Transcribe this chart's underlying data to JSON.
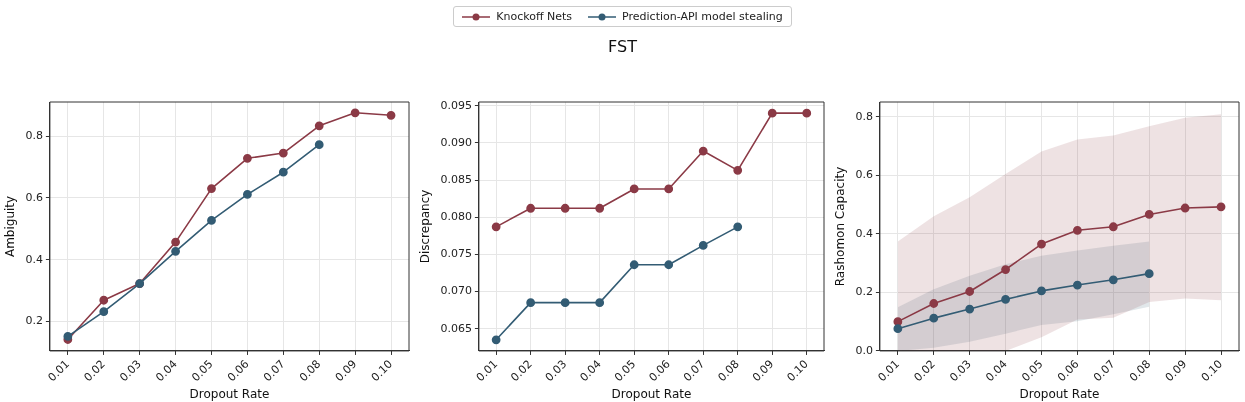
{
  "chart_data": [
    {
      "type": "line",
      "xlabel": "Dropout Rate",
      "ylabel": "Ambiguity",
      "grid": true,
      "marker": "circle",
      "line_style": "solid",
      "categories": [
        "0.01",
        "0.02",
        "0.03",
        "0.04",
        "0.05",
        "0.06",
        "0.07",
        "0.08",
        "0.09",
        "0.10"
      ],
      "ylim": [
        0.105,
        0.91
      ],
      "yticks": [
        0.2,
        0.4,
        0.6,
        0.8
      ],
      "series": [
        {
          "color": "#8b3a46",
          "values": [
            0.142,
            0.269,
            0.323,
            0.457,
            0.63,
            0.728,
            0.745,
            0.833,
            0.875,
            0.867
          ]
        },
        {
          "color": "#335c74",
          "values": [
            0.152,
            0.232,
            0.323,
            0.427,
            0.527,
            0.611,
            0.683,
            0.772,
            null,
            null
          ]
        }
      ]
    },
    {
      "type": "line",
      "title": "FST",
      "xlabel": "Dropout Rate",
      "ylabel": "Discrepancy",
      "legend": "top",
      "grid": true,
      "marker": "circle",
      "line_style": "solid",
      "categories": [
        "0.01",
        "0.02",
        "0.03",
        "0.04",
        "0.05",
        "0.06",
        "0.07",
        "0.08",
        "0.09",
        "0.10"
      ],
      "ylim": [
        0.062,
        0.0955
      ],
      "yticks": [
        0.065,
        {
          "value": 0.07,
          "label": "0.070"
        },
        0.075,
        {
          "value": 0.08,
          "label": "0.080"
        },
        0.085,
        {
          "value": 0.09,
          "label": "0.090"
        },
        0.095
      ],
      "series": [
        {
          "name": "Knockoff Nets",
          "color": "#8b3a46",
          "values": [
            0.0787,
            0.0812,
            0.0812,
            0.0812,
            0.0838,
            0.0838,
            0.0889,
            0.0863,
            0.094,
            0.094
          ]
        },
        {
          "name": "Prediction-API model stealing",
          "color": "#335c74",
          "values": [
            0.0635,
            0.0685,
            0.0685,
            0.0685,
            0.0736,
            0.0736,
            0.0762,
            0.0787,
            null,
            null
          ]
        }
      ]
    },
    {
      "type": "line",
      "xlabel": "Dropout Rate",
      "ylabel": "Rashomon Capacity",
      "grid": true,
      "marker": "circle",
      "line_style": "solid",
      "categories": [
        "0.01",
        "0.02",
        "0.03",
        "0.04",
        "0.05",
        "0.06",
        "0.07",
        "0.08",
        "0.09",
        "0.10"
      ],
      "ylim": [
        0,
        0.85
      ],
      "yticks": [
        {
          "value": 0,
          "label": "0.0"
        },
        0.2,
        0.4,
        0.6,
        0.8
      ],
      "series": [
        {
          "color": "#8b3a46",
          "values": [
            0.1,
            0.162,
            0.203,
            0.278,
            0.365,
            0.412,
            0.424,
            0.466,
            0.488,
            0.492
          ],
          "lower": [
            0,
            0,
            0,
            0,
            0.047,
            0.107,
            0.113,
            0.167,
            0.179,
            0.173
          ],
          "upper": [
            0.374,
            0.46,
            0.525,
            0.604,
            0.681,
            0.722,
            0.736,
            0.767,
            0.796,
            0.808
          ]
        },
        {
          "color": "#335c74",
          "values": [
            0.076,
            0.112,
            0.143,
            0.176,
            0.205,
            0.225,
            0.243,
            0.264,
            null,
            null
          ],
          "lower": [
            0,
            0.011,
            0.031,
            0.059,
            0.089,
            0.101,
            0.125,
            0.151,
            null,
            null
          ],
          "upper": [
            0.149,
            0.211,
            0.257,
            0.296,
            0.325,
            0.343,
            0.359,
            0.374,
            null,
            null
          ]
        }
      ]
    }
  ]
}
